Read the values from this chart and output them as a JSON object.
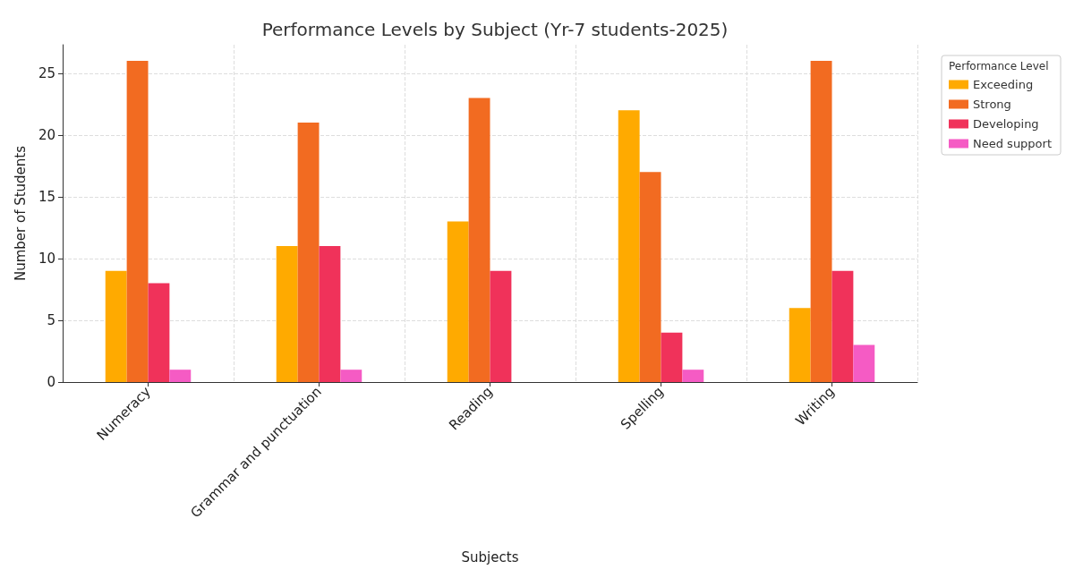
{
  "chart_data": {
    "type": "bar",
    "title": "Performance Levels by Subject (Yr-7 students-2025)",
    "xlabel": "Subjects",
    "ylabel": "Number of Students",
    "legend_title": "Performance Level",
    "categories": [
      "Numeracy",
      "Grammar and punctuation",
      "Reading",
      "Spelling",
      "Writing"
    ],
    "series": [
      {
        "name": "Exceeding",
        "color": "#ffaa00",
        "values": [
          9,
          11,
          13,
          22,
          6
        ]
      },
      {
        "name": "Strong",
        "color": "#f26b21",
        "values": [
          26,
          21,
          23,
          17,
          26
        ]
      },
      {
        "name": "Developing",
        "color": "#f0325a",
        "values": [
          8,
          11,
          9,
          4,
          9
        ]
      },
      {
        "name": "Need support",
        "color": "#f55bc4",
        "values": [
          1,
          1,
          0,
          1,
          3
        ]
      }
    ],
    "ylim": [
      0,
      27.3
    ],
    "yticks": [
      0,
      5,
      10,
      15,
      20,
      25
    ],
    "grid": true,
    "legend": "top right"
  }
}
